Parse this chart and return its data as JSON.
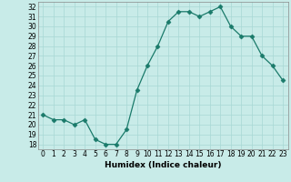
{
  "title": "",
  "xlabel": "Humidex (Indice chaleur)",
  "ylabel": "",
  "x": [
    0,
    1,
    2,
    3,
    4,
    5,
    6,
    7,
    8,
    9,
    10,
    11,
    12,
    13,
    14,
    15,
    16,
    17,
    18,
    19,
    20,
    21,
    22,
    23
  ],
  "y": [
    21.0,
    20.5,
    20.5,
    20.0,
    20.5,
    18.5,
    18.0,
    18.0,
    19.5,
    23.5,
    26.0,
    28.0,
    30.5,
    31.5,
    31.5,
    31.0,
    31.5,
    32.0,
    30.0,
    29.0,
    29.0,
    27.0,
    26.0,
    24.5
  ],
  "line_color": "#1a7a6a",
  "marker": "D",
  "marker_size": 2.5,
  "bg_color": "#c8ebe8",
  "grid_color": "#a8d8d4",
  "ylim": [
    17.5,
    32.5
  ],
  "xlim": [
    -0.5,
    23.5
  ],
  "yticks": [
    18,
    19,
    20,
    21,
    22,
    23,
    24,
    25,
    26,
    27,
    28,
    29,
    30,
    31,
    32
  ],
  "xticks": [
    0,
    1,
    2,
    3,
    4,
    5,
    6,
    7,
    8,
    9,
    10,
    11,
    12,
    13,
    14,
    15,
    16,
    17,
    18,
    19,
    20,
    21,
    22,
    23
  ],
  "tick_fontsize": 5.5,
  "label_fontsize": 6.5
}
